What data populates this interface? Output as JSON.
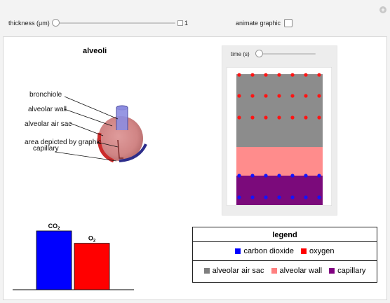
{
  "controls": {
    "thickness_label": "thickness (μm)",
    "thickness_value": "1",
    "thickness_fraction": 0.0,
    "animate_label": "animate graphic",
    "animate_checked": false
  },
  "alveoli": {
    "title": "alveoli",
    "labels": [
      "bronchiole",
      "alveolar wall",
      "alveolar air sac",
      "area depicted by graphic",
      "capillary"
    ]
  },
  "simulation": {
    "time_label": "time (s)",
    "time_fraction": 0.0,
    "colors": {
      "air_sac": "#8c8c8c",
      "wall": "#ff8c8c",
      "capillary": "#7b0a7b",
      "oxygen": "#ff1414",
      "co2": "#1414ff"
    }
  },
  "chart_data": {
    "type": "bar",
    "categories": [
      "CO2",
      "O2"
    ],
    "category_labels": [
      [
        "CO",
        "2"
      ],
      [
        "O",
        "2"
      ]
    ],
    "values": [
      1.0,
      0.79
    ],
    "colors": [
      "#0000ff",
      "#ff0000"
    ]
  },
  "legend": {
    "title": "legend",
    "row1": [
      {
        "label": "carbon dioxide",
        "color": "#0000ff"
      },
      {
        "label": "oxygen",
        "color": "#ff0000"
      }
    ],
    "row2": [
      {
        "label": "alveolar air sac",
        "color": "#7f7f7f"
      },
      {
        "label": "alveolar wall",
        "color": "#ff8080"
      },
      {
        "label": "capillary",
        "color": "#800080"
      }
    ]
  }
}
